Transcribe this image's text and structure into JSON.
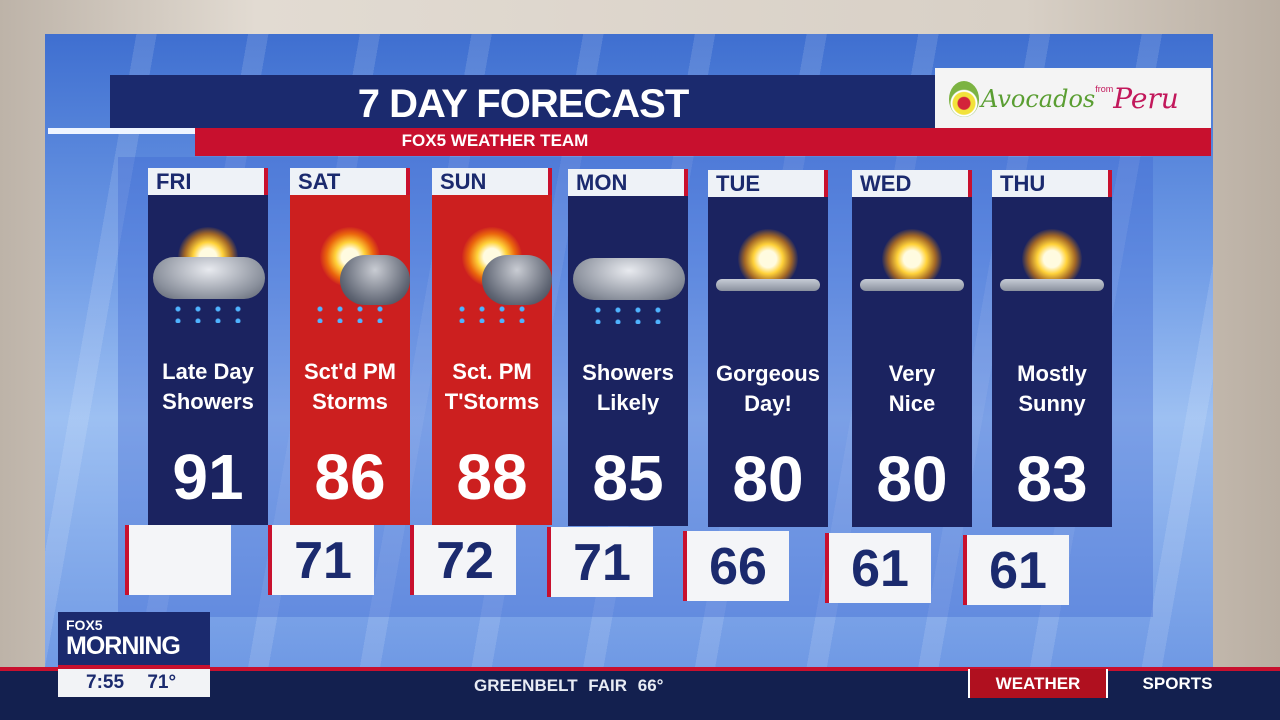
{
  "header": {
    "title": "7 DAY FORECAST",
    "subtitle": "FOX5 WEATHER TEAM"
  },
  "sponsor": {
    "text_main": "Avocados",
    "text_small": "from",
    "text_country": "Peru"
  },
  "days": [
    {
      "day": "FRI",
      "icon": "sun-cloud-showers",
      "condition": [
        "Late Day",
        "Showers"
      ],
      "high": "91",
      "low": "",
      "bg": "#1b2360"
    },
    {
      "day": "SAT",
      "icon": "sun-cloud-thunderstorm",
      "condition": [
        "Sct'd PM",
        "Storms"
      ],
      "high": "86",
      "low": "71",
      "bg": "#cc1f1f"
    },
    {
      "day": "SUN",
      "icon": "sun-cloud-thunderstorm",
      "condition": [
        "Sct. PM",
        "T'Storms"
      ],
      "high": "88",
      "low": "72",
      "bg": "#cc1f1f"
    },
    {
      "day": "MON",
      "icon": "cloud-showers",
      "condition": [
        "Showers",
        "Likely"
      ],
      "high": "85",
      "low": "71",
      "bg": "#1b2360"
    },
    {
      "day": "TUE",
      "icon": "sun-few-clouds",
      "condition": [
        "Gorgeous",
        "Day!"
      ],
      "high": "80",
      "low": "66",
      "bg": "#1b2360"
    },
    {
      "day": "WED",
      "icon": "sun-few-clouds",
      "condition": [
        "Very",
        "Nice"
      ],
      "high": "80",
      "low": "61",
      "bg": "#1b2360"
    },
    {
      "day": "THU",
      "icon": "sun-few-clouds",
      "condition": [
        "Mostly",
        "Sunny"
      ],
      "high": "83",
      "low": "61",
      "bg": "#1b2360"
    }
  ],
  "lower_third": {
    "brand_top": "FOX5",
    "brand_show": "MORNING",
    "time": "7:55",
    "temp": "71°",
    "ticker": "GREENBELT  FAIR 66°",
    "tab_active": "WEATHER",
    "tab_other": "SPORTS"
  }
}
